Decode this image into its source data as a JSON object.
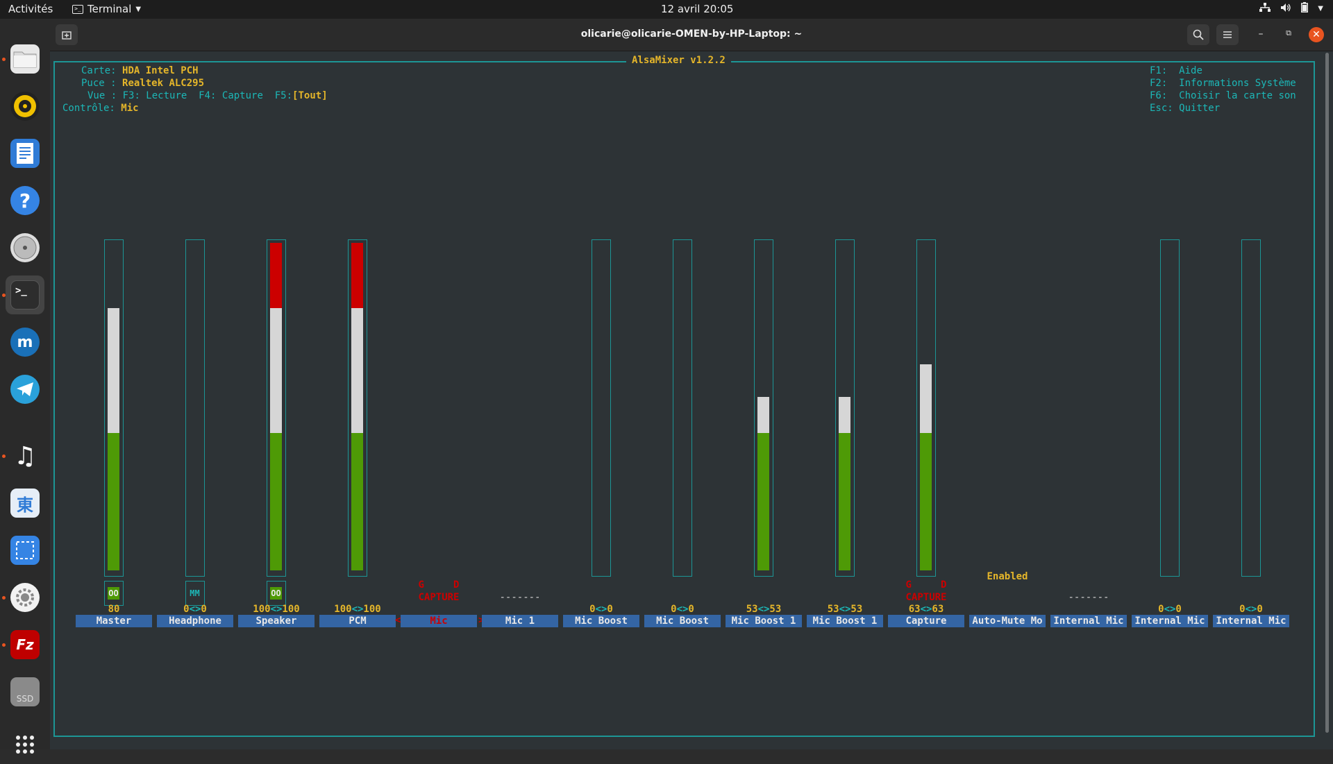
{
  "topbar": {
    "activities": "Activités",
    "app": "Terminal",
    "clock": "12 avril  20:05"
  },
  "dock": {
    "items": [
      {
        "name": "files",
        "icon": "folder-icon"
      },
      {
        "name": "rhythmbox",
        "icon": "speaker-icon"
      },
      {
        "name": "writer",
        "icon": "document-icon"
      },
      {
        "name": "help",
        "icon": "help-icon"
      },
      {
        "name": "disks",
        "icon": "disk-icon"
      },
      {
        "name": "terminal",
        "icon": "terminal-icon"
      },
      {
        "name": "musescore",
        "icon": "musescore-icon"
      },
      {
        "name": "telegram",
        "icon": "telegram-icon"
      },
      {
        "name": "music",
        "icon": "music-note-icon"
      },
      {
        "name": "dictionary",
        "icon": "kanji-icon",
        "glyph": "東"
      },
      {
        "name": "screenshot",
        "icon": "screenshot-icon"
      },
      {
        "name": "settings",
        "icon": "gear-icon"
      },
      {
        "name": "filezilla",
        "icon": "filezilla-icon",
        "glyph": "Fz"
      },
      {
        "name": "ssd",
        "icon": "ssd-icon",
        "glyph": "SSD"
      },
      {
        "name": "app-grid",
        "icon": "app-grid-icon"
      }
    ]
  },
  "window": {
    "title": "olicarie@olicarie-OMEN-by-HP-Laptop: ~"
  },
  "mixer": {
    "title": "AlsaMixer v1.2.2",
    "info": {
      "card_label": "Carte:",
      "card_value": "HDA Intel PCH",
      "chip_label": "Puce :",
      "chip_value": "Realtek ALC295",
      "view_label": "Vue :",
      "view_f3": "F3: Lecture",
      "view_f4": "F4: Capture",
      "view_f5_key": "F5:",
      "view_f5_value": "[Tout]",
      "control_label": "Contrôle:",
      "control_value": "Mic"
    },
    "help": [
      {
        "key": "F1:",
        "text": "Aide"
      },
      {
        "key": "F2:",
        "text": "Informations Système"
      },
      {
        "key": "F6:",
        "text": "Choisir la carte son"
      },
      {
        "key": "Esc:",
        "text": "Quitter"
      }
    ],
    "controls": [
      {
        "label": "Master",
        "volume_text": "80",
        "level": 0.8,
        "mute": "OO",
        "mute_on": true
      },
      {
        "label": "Headphone",
        "left": "0",
        "right": "0",
        "level": 0.0,
        "mute": "MM",
        "mute_on": false
      },
      {
        "label": "Speaker",
        "left": "100",
        "right": "100",
        "level": 1.0,
        "mute": "OO",
        "mute_on": true
      },
      {
        "label": "PCM",
        "left": "100",
        "right": "100",
        "level": 1.0
      },
      {
        "label": "Mic",
        "selected": true,
        "capture_left": "G",
        "capture_right": "D",
        "capture_text": "CAPTURE"
      },
      {
        "label": "Mic 1",
        "dashes": "-------"
      },
      {
        "label": "Mic Boost",
        "left": "0",
        "right": "0",
        "level": 0.0
      },
      {
        "label": "Mic Boost",
        "left": "0",
        "right": "0",
        "level": 0.0
      },
      {
        "label": "Mic Boost 1",
        "left": "53",
        "right": "53",
        "level": 0.53
      },
      {
        "label": "Mic Boost 1",
        "left": "53",
        "right": "53",
        "level": 0.53
      },
      {
        "label": "Capture",
        "left": "63",
        "right": "63",
        "level": 0.63,
        "capture_left": "G",
        "capture_right": "D",
        "capture_text": "CAPTURE"
      },
      {
        "label": "Auto-Mute Mo",
        "enum_value": "Enabled"
      },
      {
        "label": "Internal Mic",
        "dashes": "-------"
      },
      {
        "label": "Internal Mic",
        "left": "0",
        "right": "0",
        "level": 0.0
      },
      {
        "label": "Internal Mic",
        "left": "0",
        "right": "0",
        "level": 0.0
      }
    ],
    "colors": {
      "cyan": "#1cb7b7",
      "yellow": "#e5b62a",
      "green": "#4e9a06",
      "white": "#d6d6d6",
      "red": "#cc0000",
      "label_bg": "#3465a4"
    }
  }
}
